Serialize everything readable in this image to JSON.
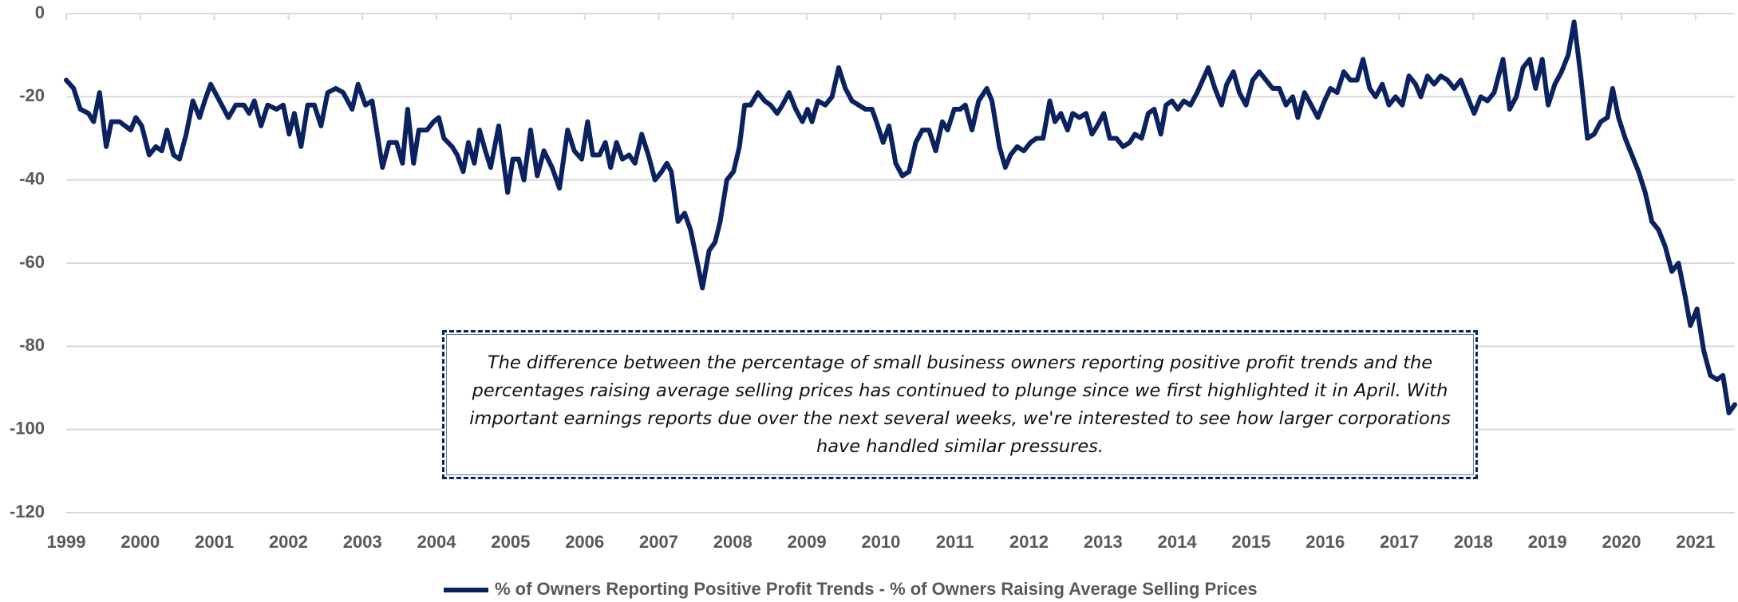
{
  "chart_data": {
    "type": "line",
    "legend_position": "bottom",
    "grid": true,
    "xlim": [
      1999,
      2021.53
    ],
    "xticks": [
      1999,
      2000,
      2001,
      2002,
      2003,
      2004,
      2005,
      2006,
      2007,
      2008,
      2009,
      2010,
      2011,
      2012,
      2013,
      2014,
      2015,
      2016,
      2017,
      2018,
      2019,
      2020,
      2021
    ],
    "ylim": [
      -120,
      0
    ],
    "yticks": [
      0,
      -20,
      -40,
      -60,
      -80,
      -100,
      -120
    ],
    "annotation": [
      "The difference between the percentage of small business owners reporting positive profit trends and the",
      "percentages raising average selling prices has continued to plunge since we first highlighted it in April.  With",
      "important earnings reports due over the next several weeks, we're interested to see how larger corporations",
      "have handled similar pressures."
    ],
    "x": [
      1999.0,
      1999.1,
      1999.19,
      1999.3,
      1999.37,
      1999.45,
      1999.54,
      1999.61,
      1999.72,
      1999.87,
      1999.94,
      2000.02,
      2000.12,
      2000.21,
      2000.29,
      2000.36,
      2000.45,
      2000.53,
      2000.62,
      2000.71,
      2000.8,
      2000.87,
      2000.95,
      2001.04,
      2001.1,
      2001.19,
      2001.29,
      2001.4,
      2001.47,
      2001.54,
      2001.63,
      2001.72,
      2001.84,
      2001.93,
      2002.01,
      2002.08,
      2002.17,
      2002.26,
      2002.35,
      2002.44,
      2002.53,
      2002.64,
      2002.74,
      2002.86,
      2002.94,
      2003.04,
      2003.13,
      2003.27,
      2003.36,
      2003.46,
      2003.54,
      2003.61,
      2003.69,
      2003.76,
      2003.87,
      2003.96,
      2004.03,
      2004.1,
      2004.21,
      2004.28,
      2004.36,
      2004.43,
      2004.51,
      2004.58,
      2004.66,
      2004.73,
      2004.84,
      2004.96,
      2005.03,
      2005.11,
      2005.18,
      2005.27,
      2005.36,
      2005.45,
      2005.56,
      2005.66,
      2005.77,
      2005.86,
      2005.96,
      2006.04,
      2006.11,
      2006.2,
      2006.28,
      2006.35,
      2006.43,
      2006.51,
      2006.6,
      2006.68,
      2006.77,
      2006.86,
      2006.95,
      2007.04,
      2007.11,
      2007.17,
      2007.26,
      2007.35,
      2007.43,
      2007.5,
      2007.59,
      2007.68,
      2007.76,
      2007.83,
      2007.92,
      2008.01,
      2008.09,
      2008.16,
      2008.24,
      2008.34,
      2008.43,
      2008.51,
      2008.6,
      2008.67,
      2008.76,
      2008.85,
      2008.94,
      2009.01,
      2009.07,
      2009.15,
      2009.25,
      2009.34,
      2009.43,
      2009.52,
      2009.61,
      2009.7,
      2009.79,
      2009.88,
      2009.94,
      2010.03,
      2010.11,
      2010.2,
      2010.29,
      2010.38,
      2010.47,
      2010.56,
      2010.65,
      2010.74,
      2010.83,
      2010.9,
      2010.99,
      2011.07,
      2011.14,
      2011.23,
      2011.32,
      2011.43,
      2011.5,
      2011.6,
      2011.68,
      2011.75,
      2011.84,
      2011.93,
      2012.02,
      2012.1,
      2012.19,
      2012.28,
      2012.35,
      2012.43,
      2012.52,
      2012.59,
      2012.68,
      2012.77,
      2012.85,
      2012.92,
      2013.01,
      2013.09,
      2013.18,
      2013.27,
      2013.36,
      2013.43,
      2013.52,
      2013.61,
      2013.69,
      2013.78,
      2013.85,
      2013.93,
      2014.01,
      2014.09,
      2014.18,
      2014.27,
      2014.42,
      2014.51,
      2014.6,
      2014.67,
      2014.76,
      2014.84,
      2014.93,
      2015.02,
      2015.11,
      2015.2,
      2015.29,
      2015.38,
      2015.47,
      2015.56,
      2015.63,
      2015.72,
      2015.81,
      2015.9,
      2015.99,
      2016.07,
      2016.16,
      2016.25,
      2016.34,
      2016.43,
      2016.51,
      2016.6,
      2016.68,
      2016.77,
      2016.86,
      2016.95,
      2017.04,
      2017.13,
      2017.22,
      2017.29,
      2017.38,
      2017.47,
      2017.56,
      2017.65,
      2017.74,
      2017.83,
      2017.92,
      2018.01,
      2018.1,
      2018.19,
      2018.28,
      2018.4,
      2018.49,
      2018.58,
      2018.67,
      2018.76,
      2018.84,
      2018.93,
      2019.01,
      2019.1,
      2019.19,
      2019.28,
      2019.36,
      2019.45,
      2019.54,
      2019.63,
      2019.72,
      2019.81,
      2019.88,
      2019.96,
      2020.05,
      2020.14,
      2020.23,
      2020.32,
      2020.41,
      2020.5,
      2020.59,
      2020.68,
      2020.77,
      2020.86,
      2020.93,
      2021.02,
      2021.11,
      2021.2,
      2021.29,
      2021.37,
      2021.45,
      2021.53
    ],
    "series": [
      {
        "name": "% of Owners Reporting Positive Profit Trends - % of Owners Raising Average Selling Prices",
        "color": "#0b2260",
        "values": [
          -16,
          -18,
          -23,
          -24,
          -26,
          -19,
          -32,
          -26,
          -26,
          -28,
          -25,
          -27,
          -34,
          -32,
          -33,
          -28,
          -34,
          -35,
          -29,
          -21,
          -25,
          -21,
          -17,
          -20,
          -22,
          -25,
          -22,
          -22,
          -24,
          -21,
          -27,
          -22,
          -23,
          -22,
          -29,
          -24,
          -32,
          -22,
          -22,
          -27,
          -19,
          -18,
          -19,
          -23,
          -17,
          -22,
          -21,
          -37,
          -31,
          -31,
          -36,
          -23,
          -36,
          -28,
          -28,
          -26,
          -25,
          -30,
          -32,
          -34,
          -38,
          -31,
          -36,
          -28,
          -33,
          -37,
          -27,
          -43,
          -35,
          -35,
          -40,
          -28,
          -39,
          -33,
          -37,
          -42,
          -28,
          -33,
          -35,
          -26,
          -34,
          -34,
          -31,
          -37,
          -31,
          -35,
          -34,
          -36,
          -29,
          -34,
          -40,
          -38,
          -36,
          -38,
          -50,
          -48,
          -52,
          -58,
          -66,
          -57,
          -55,
          -50,
          -40,
          -38,
          -32,
          -22,
          -22,
          -19,
          -21,
          -22,
          -24,
          -22,
          -19,
          -23,
          -26,
          -23,
          -26,
          -21,
          -22,
          -20,
          -13,
          -18,
          -21,
          -22,
          -23,
          -23,
          -26,
          -31,
          -27,
          -36,
          -39,
          -38,
          -31,
          -28,
          -28,
          -33,
          -26,
          -28,
          -23,
          -23,
          -22,
          -28,
          -21,
          -18,
          -21,
          -32,
          -37,
          -34,
          -32,
          -33,
          -31,
          -30,
          -30,
          -21,
          -26,
          -24,
          -28,
          -24,
          -25,
          -24,
          -29,
          -27,
          -24,
          -30,
          -30,
          -32,
          -31,
          -29,
          -30,
          -24,
          -23,
          -29,
          -22,
          -21,
          -23,
          -21,
          -22,
          -19,
          -13,
          -18,
          -22,
          -17,
          -14,
          -19,
          -22,
          -16,
          -14,
          -16,
          -18,
          -18,
          -22,
          -20,
          -25,
          -19,
          -22,
          -25,
          -21,
          -18,
          -19,
          -14,
          -16,
          -16,
          -11,
          -18,
          -20,
          -17,
          -22,
          -20,
          -22,
          -15,
          -17,
          -20,
          -15,
          -17,
          -15,
          -16,
          -18,
          -16,
          -20,
          -24,
          -20,
          -21,
          -19,
          -11,
          -23,
          -20,
          -13,
          -11,
          -18,
          -11,
          -22,
          -17,
          -14,
          -10,
          -2,
          -15,
          -30,
          -29,
          -26,
          -25,
          -18,
          -25,
          -30,
          -34,
          -38,
          -43,
          -50,
          -52,
          -56,
          -62,
          -60,
          -68,
          -75,
          -71,
          -81,
          -87,
          -88,
          -87,
          -96,
          -94
        ]
      }
    ]
  }
}
